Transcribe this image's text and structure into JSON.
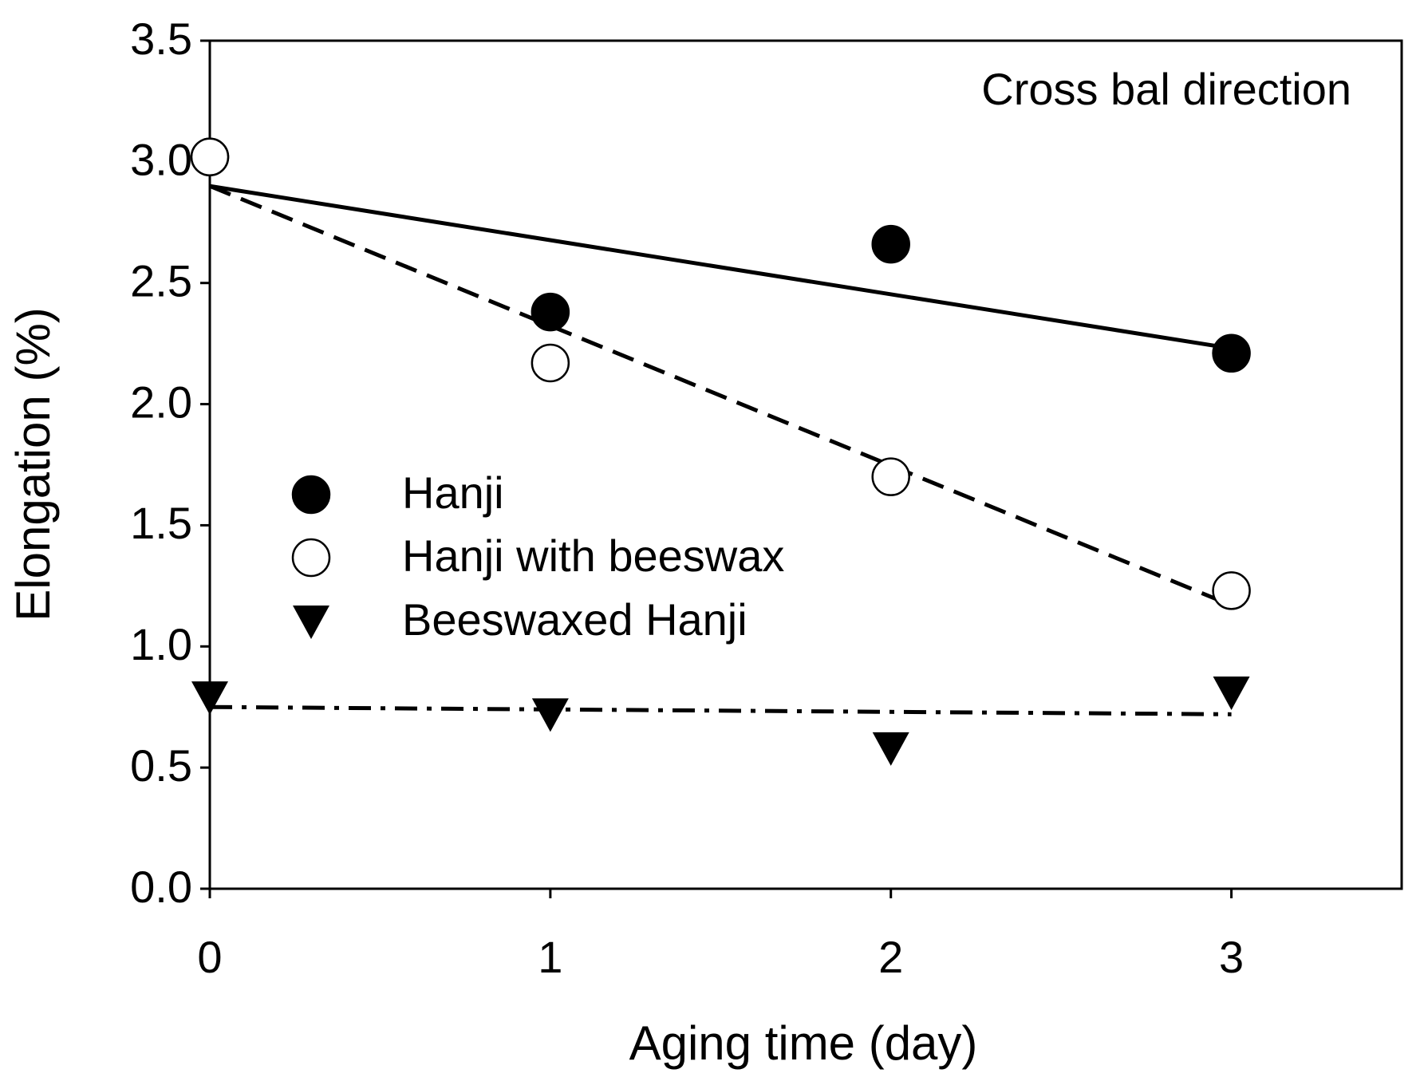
{
  "chart_data": {
    "type": "scatter",
    "annotation": "Cross bal direction",
    "xlabel": "Aging time (day)",
    "ylabel": "Elongation (%)",
    "xlim": [
      0,
      3.5
    ],
    "ylim": [
      0,
      3.5
    ],
    "xticks": [
      0,
      1,
      2,
      3
    ],
    "yticks": [
      {
        "value": 0,
        "label": "0.0"
      },
      {
        "value": 0.5,
        "label": "0.5"
      },
      {
        "value": 1,
        "label": "1.0"
      },
      {
        "value": 1.5,
        "label": "1.5"
      },
      {
        "value": 2,
        "label": "2.0"
      },
      {
        "value": 2.5,
        "label": "2.5"
      },
      {
        "value": 3,
        "label": "3.0"
      },
      {
        "value": 3.5,
        "label": "3.5"
      }
    ],
    "x": [
      0,
      1,
      2,
      3
    ],
    "series": [
      {
        "name": "Hanji",
        "marker": "circle",
        "color": "#000000",
        "values": [
          3.02,
          2.38,
          2.66,
          2.21
        ]
      },
      {
        "name": "Hanji with beeswax",
        "marker": "open-circle",
        "color": "#000000",
        "values": [
          3.02,
          2.17,
          1.7,
          1.23
        ]
      },
      {
        "name": "Beeswaxed Hanji",
        "marker": "triangle-down",
        "color": "#000000",
        "values": [
          0.79,
          0.72,
          0.58,
          0.81
        ]
      }
    ],
    "fits": [
      {
        "dash": "solid",
        "x": [
          0,
          3
        ],
        "values": [
          2.9,
          2.23
        ]
      },
      {
        "dash": "dashed",
        "x": [
          0,
          3
        ],
        "values": [
          2.9,
          1.17
        ]
      },
      {
        "dash": "dash-dot",
        "x": [
          0,
          3
        ],
        "values": [
          0.75,
          0.72
        ]
      }
    ]
  }
}
